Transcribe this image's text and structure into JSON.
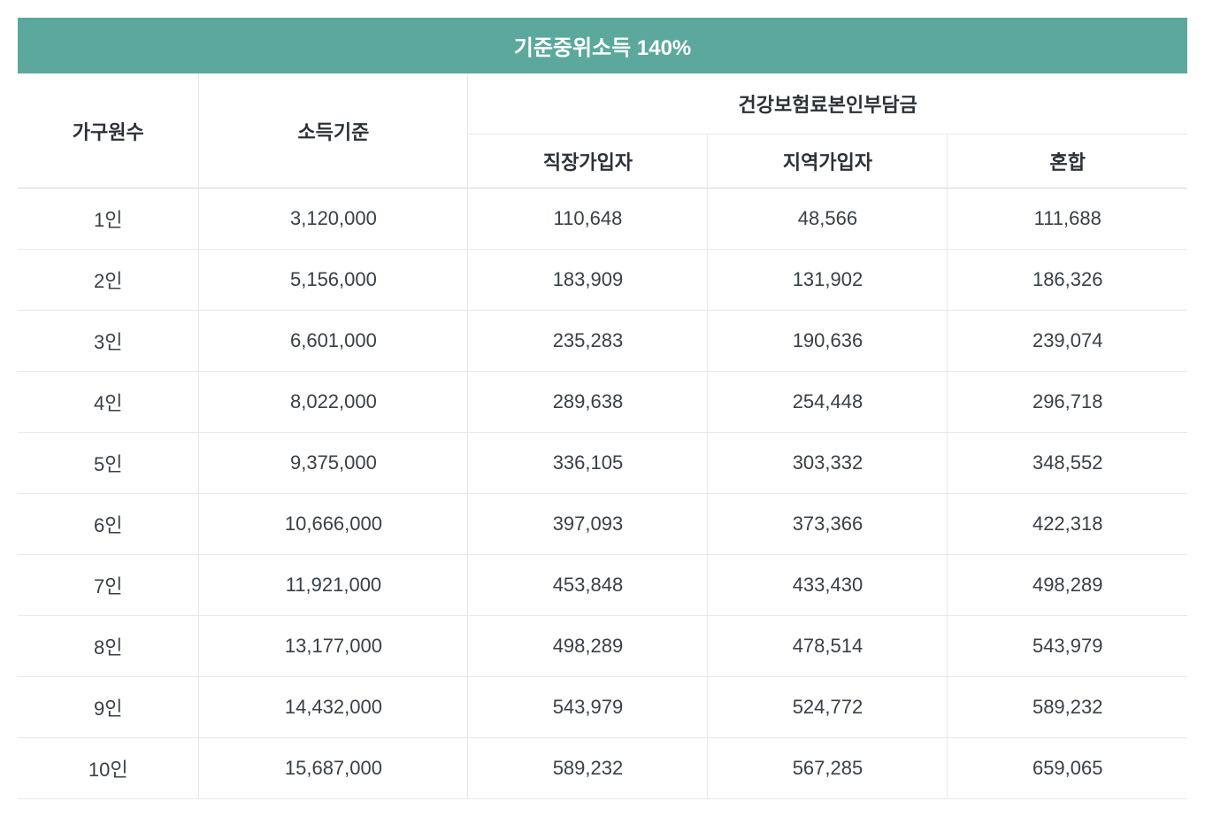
{
  "table": {
    "type": "table",
    "title": "기준중위소득 140%",
    "title_bg_color": "#5ca89d",
    "title_text_color": "#ffffff",
    "title_fontsize": 24,
    "header_fontsize": 22,
    "cell_fontsize": 22,
    "text_color": "#3a4046",
    "header_text_color": "#2d3238",
    "border_color": "#e8e8e8",
    "background_color": "#ffffff",
    "columns": {
      "household": "가구원수",
      "income": "소득기준",
      "insurance_group": "건강보험료본인부담금",
      "employee": "직장가입자",
      "regional": "지역가입자",
      "mixed": "혼합"
    },
    "column_widths": {
      "household": "15.5%",
      "income": "23%",
      "sub": "20.5%"
    },
    "rows": [
      {
        "household": "1인",
        "income": "3,120,000",
        "employee": "110,648",
        "regional": "48,566",
        "mixed": "111,688"
      },
      {
        "household": "2인",
        "income": "5,156,000",
        "employee": "183,909",
        "regional": "131,902",
        "mixed": "186,326"
      },
      {
        "household": "3인",
        "income": "6,601,000",
        "employee": "235,283",
        "regional": "190,636",
        "mixed": "239,074"
      },
      {
        "household": "4인",
        "income": "8,022,000",
        "employee": "289,638",
        "regional": "254,448",
        "mixed": "296,718"
      },
      {
        "household": "5인",
        "income": "9,375,000",
        "employee": "336,105",
        "regional": "303,332",
        "mixed": "348,552"
      },
      {
        "household": "6인",
        "income": "10,666,000",
        "employee": "397,093",
        "regional": "373,366",
        "mixed": "422,318"
      },
      {
        "household": "7인",
        "income": "11,921,000",
        "employee": "453,848",
        "regional": "433,430",
        "mixed": "498,289"
      },
      {
        "household": "8인",
        "income": "13,177,000",
        "employee": "498,289",
        "regional": "478,514",
        "mixed": "543,979"
      },
      {
        "household": "9인",
        "income": "14,432,000",
        "employee": "543,979",
        "regional": "524,772",
        "mixed": "589,232"
      },
      {
        "household": "10인",
        "income": "15,687,000",
        "employee": "589,232",
        "regional": "567,285",
        "mixed": "659,065"
      }
    ]
  }
}
